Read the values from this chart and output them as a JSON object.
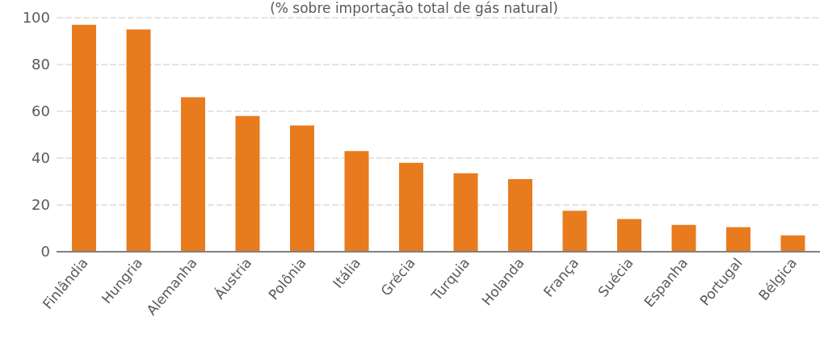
{
  "chart_data": {
    "type": "bar",
    "subtitle": "(% sobre importação total de gás natural)",
    "categories": [
      "Finlândia",
      "Hungria",
      "Alemanha",
      "Áustria",
      "Polônia",
      "Itália",
      "Grécia",
      "Turquia",
      "Holanda",
      "França",
      "Suécia",
      "Espanha",
      "Portugal",
      "Bélgica"
    ],
    "values": [
      97,
      95,
      66,
      58,
      54,
      43,
      38,
      33.5,
      31,
      17.5,
      14,
      11.5,
      10.5,
      7
    ],
    "color": "#e87b1e",
    "ylim": [
      0,
      100
    ],
    "yticks": [
      0,
      20,
      40,
      60,
      80,
      100
    ],
    "grid": "y",
    "legend": false
  }
}
